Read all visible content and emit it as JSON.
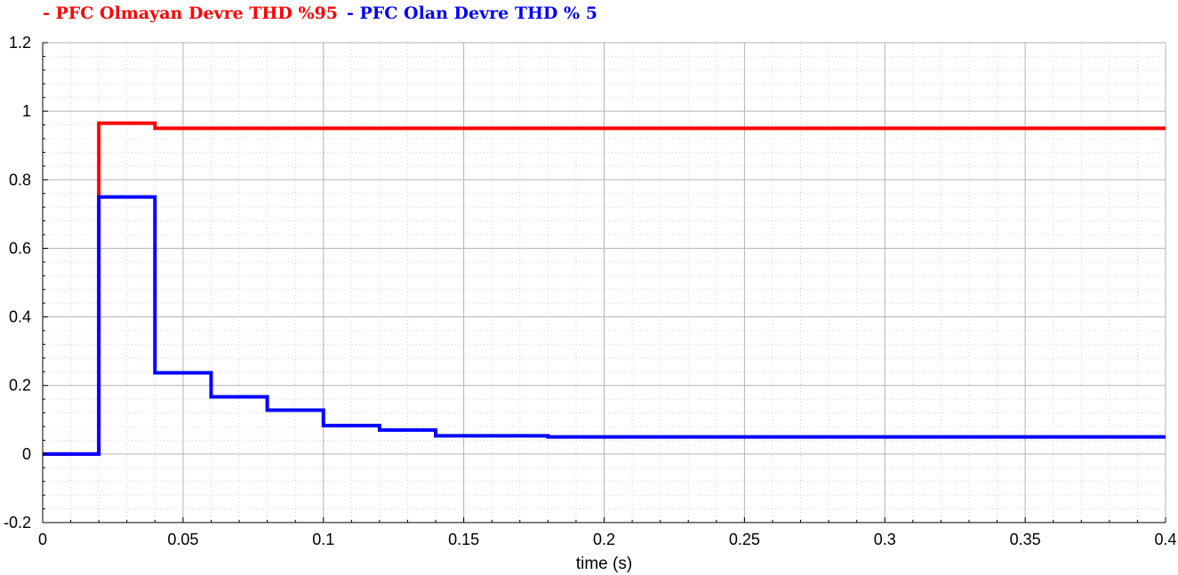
{
  "chart_data": {
    "type": "line",
    "title": "",
    "xlabel": "time (s)",
    "ylabel": "",
    "xlim": [
      0,
      0.4
    ],
    "ylim": [
      -0.2,
      1.2
    ],
    "xticks": [
      0,
      0.05,
      0.1,
      0.15,
      0.2,
      0.25,
      0.3,
      0.35,
      0.4
    ],
    "xtick_labels": [
      "0",
      "0.05",
      "0.1",
      "0.15",
      "0.2",
      "0.25",
      "0.3",
      "0.35",
      "0.4"
    ],
    "yticks": [
      -0.2,
      0,
      0.2,
      0.4,
      0.6,
      0.8,
      1,
      1.2
    ],
    "ytick_labels": [
      "-0.2",
      "0",
      "0.2",
      "0.4",
      "0.6",
      "0.8",
      "1",
      "1.2"
    ],
    "grid": true,
    "legend_position": "top-left",
    "series": [
      {
        "name": "- PFC Olmayan Devre THD %95",
        "color": "#ff0000",
        "step": true,
        "points": [
          [
            0,
            0
          ],
          [
            0.02,
            0
          ],
          [
            0.02,
            0.965
          ],
          [
            0.04,
            0.965
          ],
          [
            0.04,
            0.95
          ],
          [
            0.4,
            0.95
          ]
        ]
      },
      {
        "name": "- PFC Olan Devre THD % 5",
        "color": "#0000ff",
        "step": true,
        "points": [
          [
            0,
            0
          ],
          [
            0.02,
            0
          ],
          [
            0.02,
            0.75
          ],
          [
            0.04,
            0.75
          ],
          [
            0.04,
            0.237
          ],
          [
            0.06,
            0.237
          ],
          [
            0.06,
            0.167
          ],
          [
            0.08,
            0.167
          ],
          [
            0.08,
            0.128
          ],
          [
            0.1,
            0.128
          ],
          [
            0.1,
            0.083
          ],
          [
            0.12,
            0.083
          ],
          [
            0.12,
            0.07
          ],
          [
            0.14,
            0.07
          ],
          [
            0.14,
            0.053
          ],
          [
            0.18,
            0.053
          ],
          [
            0.18,
            0.05
          ],
          [
            0.4,
            0.05
          ]
        ]
      }
    ]
  }
}
